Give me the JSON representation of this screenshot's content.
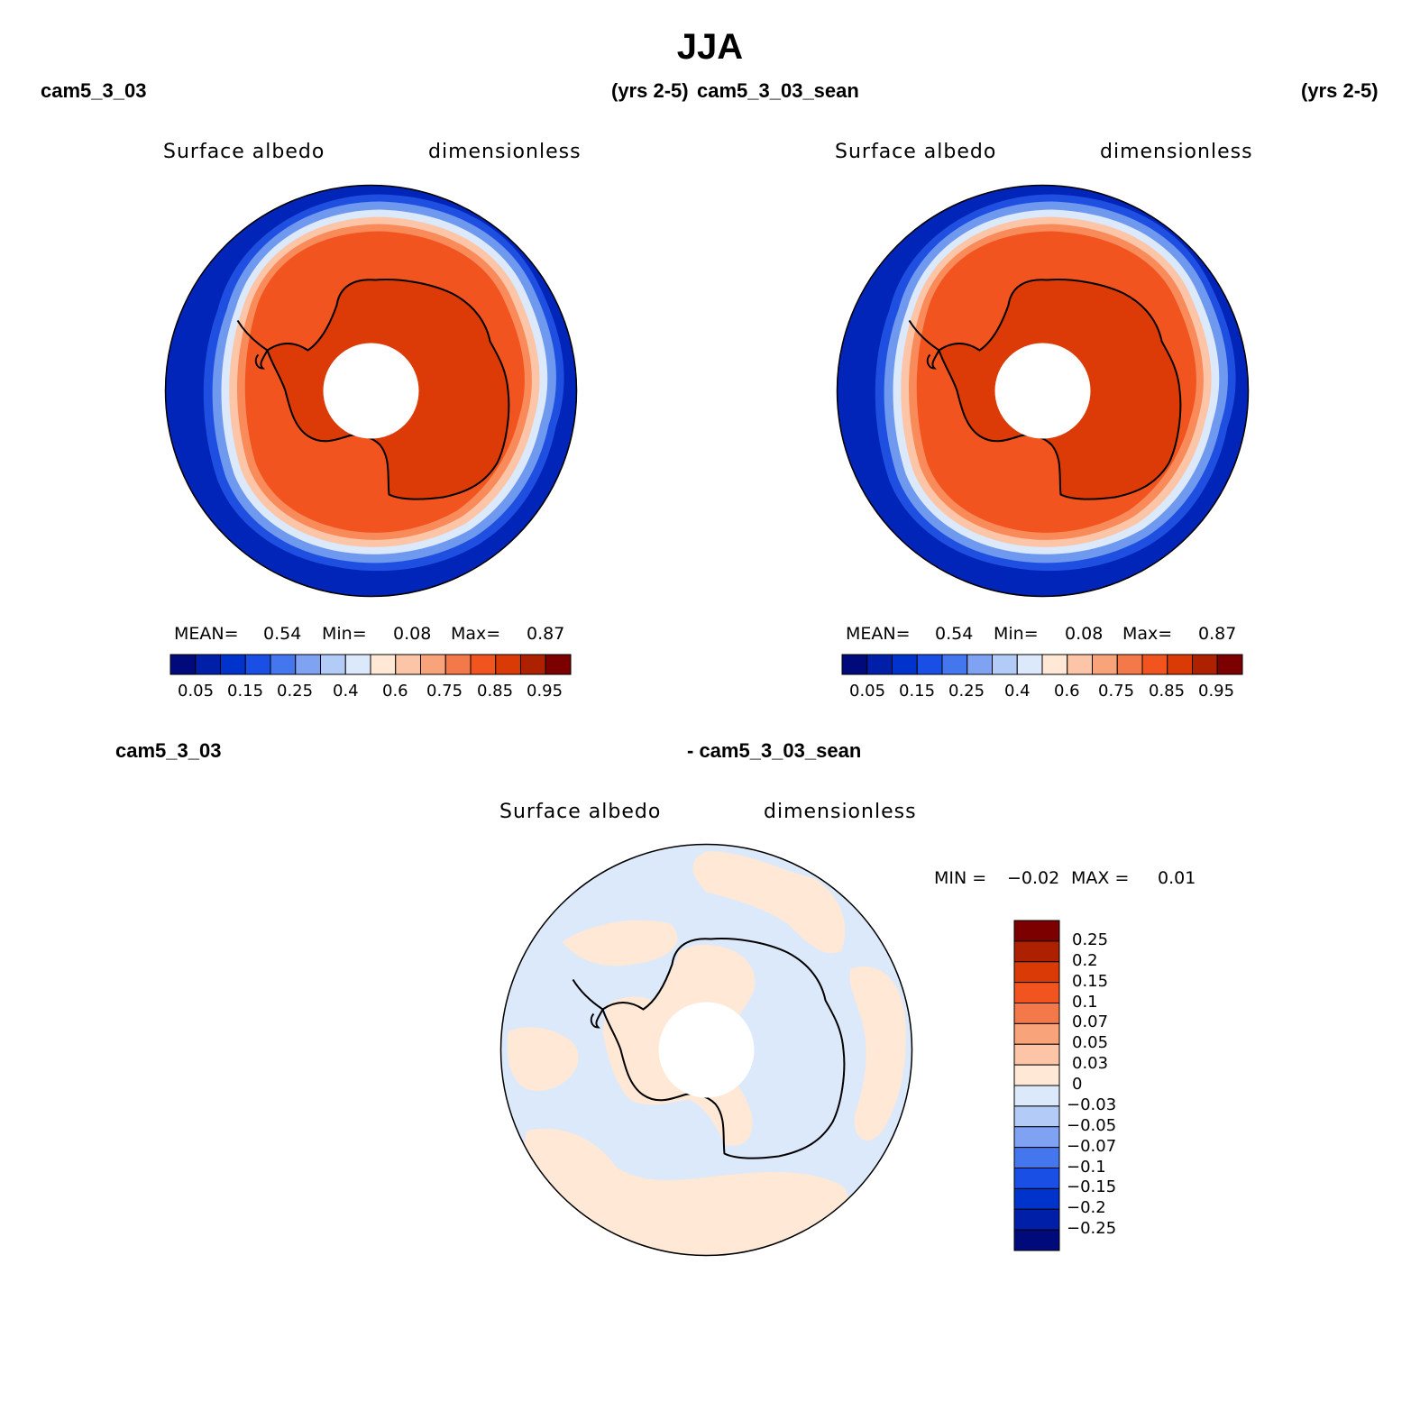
{
  "title": "JJA",
  "panels": [
    {
      "case_name": "cam5_3_03",
      "years": "(yrs 2-5)",
      "variable_label": "Surface albedo",
      "units_label": "dimensionless",
      "stats": {
        "mean_label": "MEAN=",
        "mean": "0.54",
        "min_label": "Min=",
        "min": "0.08",
        "max_label": "Max=",
        "max": "0.87"
      }
    },
    {
      "case_name": "cam5_3_03_sean",
      "years": "(yrs 2-5)",
      "variable_label": "Surface albedo",
      "units_label": "dimensionless",
      "stats": {
        "mean_label": "MEAN=",
        "mean": "0.54",
        "min_label": "Min=",
        "min": "0.08",
        "max_label": "Max=",
        "max": "0.87"
      }
    }
  ],
  "diff_panel": {
    "case_a": "cam5_3_03",
    "case_b": "- cam5_3_03_sean",
    "variable_label": "Surface albedo",
    "units_label": "dimensionless",
    "stats": {
      "min_label": "MIN =",
      "min": "−0.02",
      "max_label": "MAX =",
      "max": "0.01"
    }
  },
  "colorbar_abs": {
    "colors": [
      "#000a7a",
      "#001fa8",
      "#0033cc",
      "#1a4fe6",
      "#4477ee",
      "#7fa2f2",
      "#b3cbf7",
      "#dbe9fb",
      "#ffe8d6",
      "#fcc5a8",
      "#f9a37a",
      "#f4794a",
      "#f2541f",
      "#d93a06",
      "#ad2100",
      "#7d0000"
    ],
    "tick_labels": [
      "0.05",
      "0.15",
      "0.25",
      "0.4",
      "0.6",
      "0.75",
      "0.85",
      "0.95"
    ]
  },
  "colorbar_diff": {
    "colors": [
      "#000a7a",
      "#001fa8",
      "#0033cc",
      "#1a4fe6",
      "#4477ee",
      "#7fa2f2",
      "#b3cbf7",
      "#dbe9fb",
      "#ffe8d6",
      "#fcc5a8",
      "#f9a37a",
      "#f4794a",
      "#f2541f",
      "#d93a06",
      "#ad2100",
      "#7d0000"
    ],
    "tick_labels": [
      "−0.25",
      "−0.2",
      "−0.15",
      "−0.1",
      "−0.07",
      "−0.05",
      "−0.03",
      "0",
      "0.03",
      "0.05",
      "0.07",
      "0.1",
      "0.15",
      "0.2",
      "0.25"
    ]
  },
  "map_colors": {
    "ocean": "#0025b8",
    "ice_edge_1": "#1f4fe0",
    "ice_edge_2": "#6f98ef",
    "ice_edge_3": "#dbe9fb",
    "ice_edge_4": "#fcc5a8",
    "ice_edge_5": "#f98a5a",
    "sea_ice": "#f2541f",
    "continent": "#dc3a06",
    "diff_neg": "#dbe9fb",
    "diff_pos": "#ffe8d6"
  }
}
